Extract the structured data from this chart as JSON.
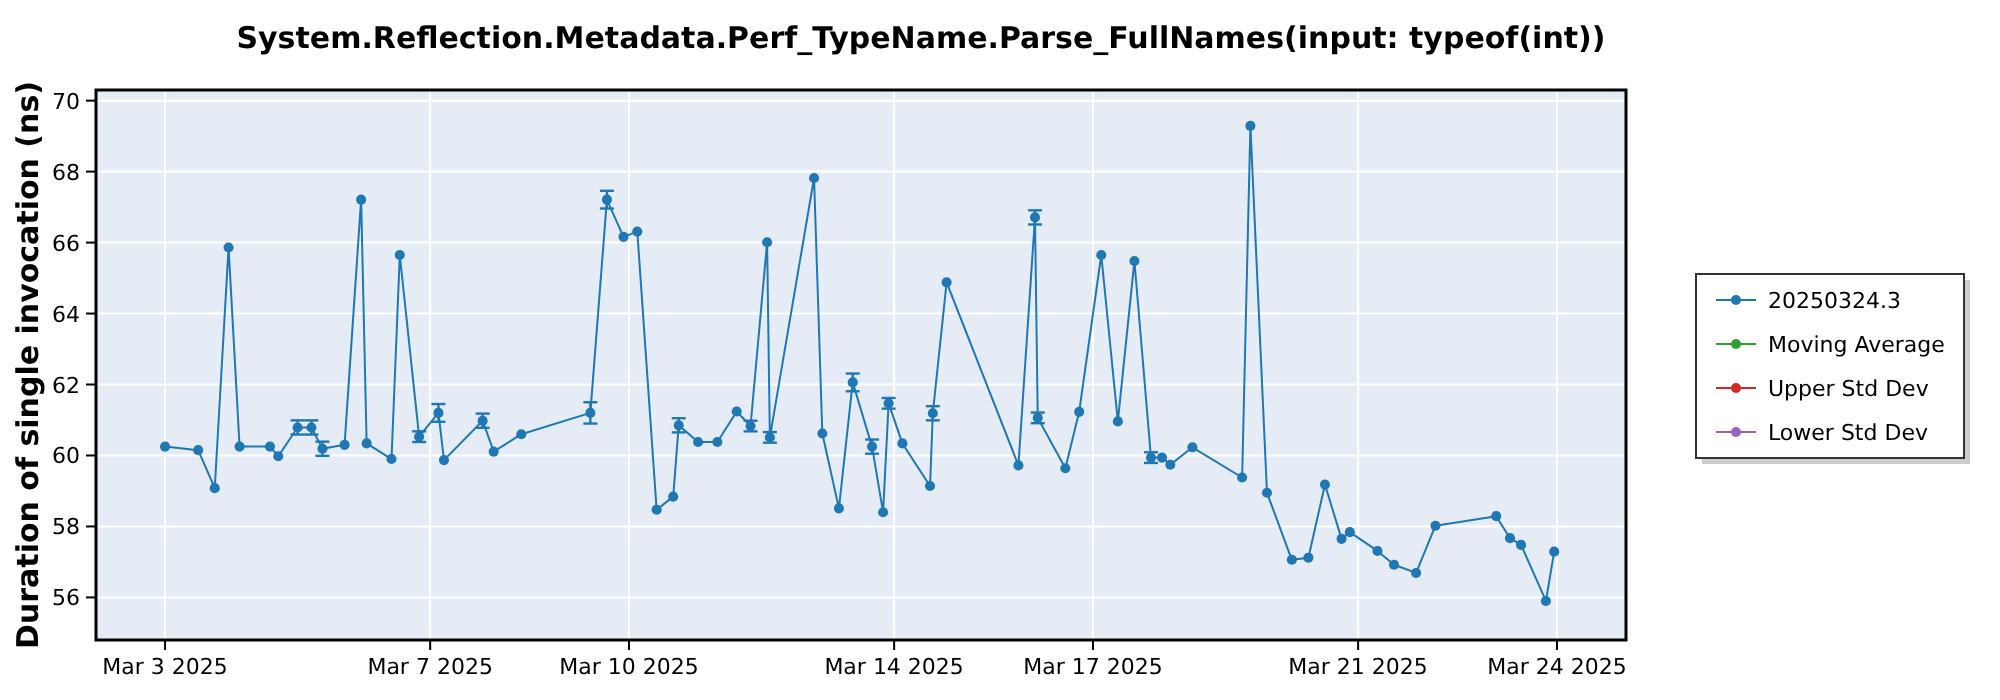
{
  "chart_data": {
    "type": "line",
    "title": "System.Reflection.Metadata.Perf_TypeName.Parse_FullNames(input: typeof(int))",
    "ylabel": "Duration of single invocation (ns)",
    "xlim": [
      "2025-03-01T23:00",
      "2025-03-25T01:00"
    ],
    "xticks": [
      {
        "value": "2025-03-03T00:00",
        "label": "Mar 3 2025"
      },
      {
        "value": "2025-03-07T00:00",
        "label": "Mar 7 2025"
      },
      {
        "value": "2025-03-10T00:00",
        "label": "Mar 10 2025"
      },
      {
        "value": "2025-03-14T00:00",
        "label": "Mar 14 2025"
      },
      {
        "value": "2025-03-17T00:00",
        "label": "Mar 17 2025"
      },
      {
        "value": "2025-03-21T00:00",
        "label": "Mar 21 2025"
      },
      {
        "value": "2025-03-24T00:00",
        "label": "Mar 24 2025"
      }
    ],
    "ylim": [
      54.8,
      70.3
    ],
    "yticks": [
      56,
      58,
      60,
      62,
      64,
      66,
      68,
      70
    ],
    "grid": true,
    "legend": "right",
    "marker": "circle",
    "line_style": "solid",
    "series": [
      {
        "name": "20250324.3",
        "color": "#1f77b4",
        "x": [
          "2025-03-03T00:00",
          "2025-03-03T12:00",
          "2025-03-03T18:00",
          "2025-03-03T23:00",
          "2025-03-04T03:00",
          "2025-03-04T14:00",
          "2025-03-04T17:00",
          "2025-03-05T00:00",
          "2025-03-05T05:00",
          "2025-03-05T09:00",
          "2025-03-05T17:00",
          "2025-03-05T23:00",
          "2025-03-06T01:00",
          "2025-03-06T10:00",
          "2025-03-06T13:00",
          "2025-03-06T20:00",
          "2025-03-07T03:00",
          "2025-03-07T05:00",
          "2025-03-07T19:00",
          "2025-03-07T23:00",
          "2025-03-08T09:00",
          "2025-03-09T10:00",
          "2025-03-09T16:00",
          "2025-03-09T22:00",
          "2025-03-10T03:00",
          "2025-03-10T10:00",
          "2025-03-10T16:00",
          "2025-03-10T18:00",
          "2025-03-11T01:00",
          "2025-03-11T08:00",
          "2025-03-11T15:00",
          "2025-03-11T20:00",
          "2025-03-12T02:00",
          "2025-03-12T03:00",
          "2025-03-12T19:00",
          "2025-03-12T22:00",
          "2025-03-13T04:00",
          "2025-03-13T09:00",
          "2025-03-13T16:00",
          "2025-03-13T20:00",
          "2025-03-13T22:00",
          "2025-03-14T03:00",
          "2025-03-14T13:00",
          "2025-03-14T14:00",
          "2025-03-14T19:00",
          "2025-03-15T21:00",
          "2025-03-16T03:00",
          "2025-03-16T04:00",
          "2025-03-16T14:00",
          "2025-03-16T19:00",
          "2025-03-17T03:00",
          "2025-03-17T09:00",
          "2025-03-17T15:00",
          "2025-03-17T21:00",
          "2025-03-18T01:00",
          "2025-03-18T04:00",
          "2025-03-18T12:00",
          "2025-03-19T06:00",
          "2025-03-19T09:00",
          "2025-03-19T15:00",
          "2025-03-20T00:00",
          "2025-03-20T06:00",
          "2025-03-20T12:00",
          "2025-03-20T18:00",
          "2025-03-20T21:00",
          "2025-03-21T07:00",
          "2025-03-21T13:00",
          "2025-03-21T21:00",
          "2025-03-22T04:00",
          "2025-03-23T02:00",
          "2025-03-23T07:00",
          "2025-03-23T11:00",
          "2025-03-23T20:00",
          "2025-03-23T23:00"
        ],
        "values": [
          60.25,
          60.15,
          59.08,
          65.86,
          60.25,
          60.25,
          59.98,
          60.79,
          60.79,
          60.19,
          60.3,
          67.21,
          60.34,
          59.9,
          65.65,
          60.53,
          61.2,
          59.87,
          60.98,
          60.11,
          60.6,
          61.2,
          67.21,
          66.16,
          66.31,
          58.47,
          58.84,
          60.85,
          60.38,
          60.38,
          61.24,
          60.83,
          66.01,
          60.51,
          67.82,
          60.62,
          58.51,
          62.06,
          60.25,
          58.4,
          61.47,
          60.34,
          59.14,
          61.19,
          64.88,
          59.72,
          66.71,
          61.06,
          59.64,
          61.23,
          65.65,
          60.96,
          65.48,
          59.94,
          59.94,
          59.74,
          60.23,
          59.38,
          69.29,
          58.95,
          57.06,
          57.12,
          59.18,
          57.65,
          57.84,
          57.31,
          56.92,
          56.69,
          58.02,
          58.29,
          57.67,
          57.48,
          55.9,
          57.29
        ],
        "errors": [
          null,
          null,
          null,
          null,
          null,
          null,
          null,
          0.2,
          0.2,
          0.2,
          null,
          null,
          null,
          null,
          null,
          0.15,
          0.25,
          null,
          0.2,
          null,
          null,
          0.3,
          0.25,
          null,
          null,
          null,
          null,
          0.2,
          null,
          null,
          null,
          0.15,
          null,
          0.15,
          null,
          null,
          null,
          0.25,
          0.2,
          null,
          0.15,
          null,
          null,
          0.2,
          null,
          null,
          0.2,
          0.15,
          null,
          null,
          null,
          null,
          null,
          0.15,
          null,
          null,
          null,
          null,
          null,
          null,
          null,
          null,
          null,
          null,
          null,
          null,
          null,
          null,
          null,
          null,
          null,
          null,
          null,
          null
        ]
      },
      {
        "name": "Moving Average",
        "color": "#2ca02c"
      },
      {
        "name": "Upper Std Dev",
        "color": "#d62728"
      },
      {
        "name": "Lower Std Dev",
        "color": "#9467bd"
      }
    ]
  }
}
